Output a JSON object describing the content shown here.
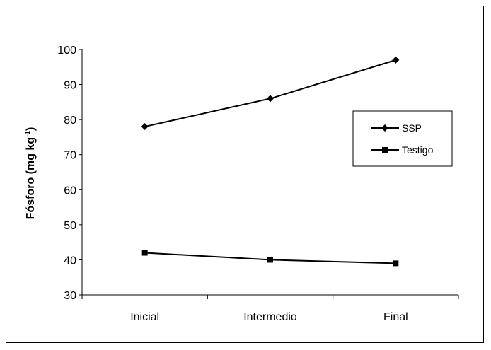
{
  "chart_data": {
    "type": "line",
    "title": "",
    "xlabel": "",
    "ylabel": "Fósforo (mg kg",
    "ylabel_superscript": "-1",
    "ylabel_close": ")",
    "categories": [
      "Inicial",
      "Intermedio",
      "Final"
    ],
    "series": [
      {
        "name": "SSP",
        "values": [
          78,
          86,
          97
        ],
        "marker": "diamond",
        "color": "#000000"
      },
      {
        "name": "Testigo",
        "values": [
          42,
          40,
          39
        ],
        "marker": "square",
        "color": "#000000"
      }
    ],
    "ylim": [
      30,
      100
    ],
    "yticks": [
      30,
      40,
      50,
      60,
      70,
      80,
      90,
      100
    ],
    "grid": false,
    "legend_position": "right"
  }
}
